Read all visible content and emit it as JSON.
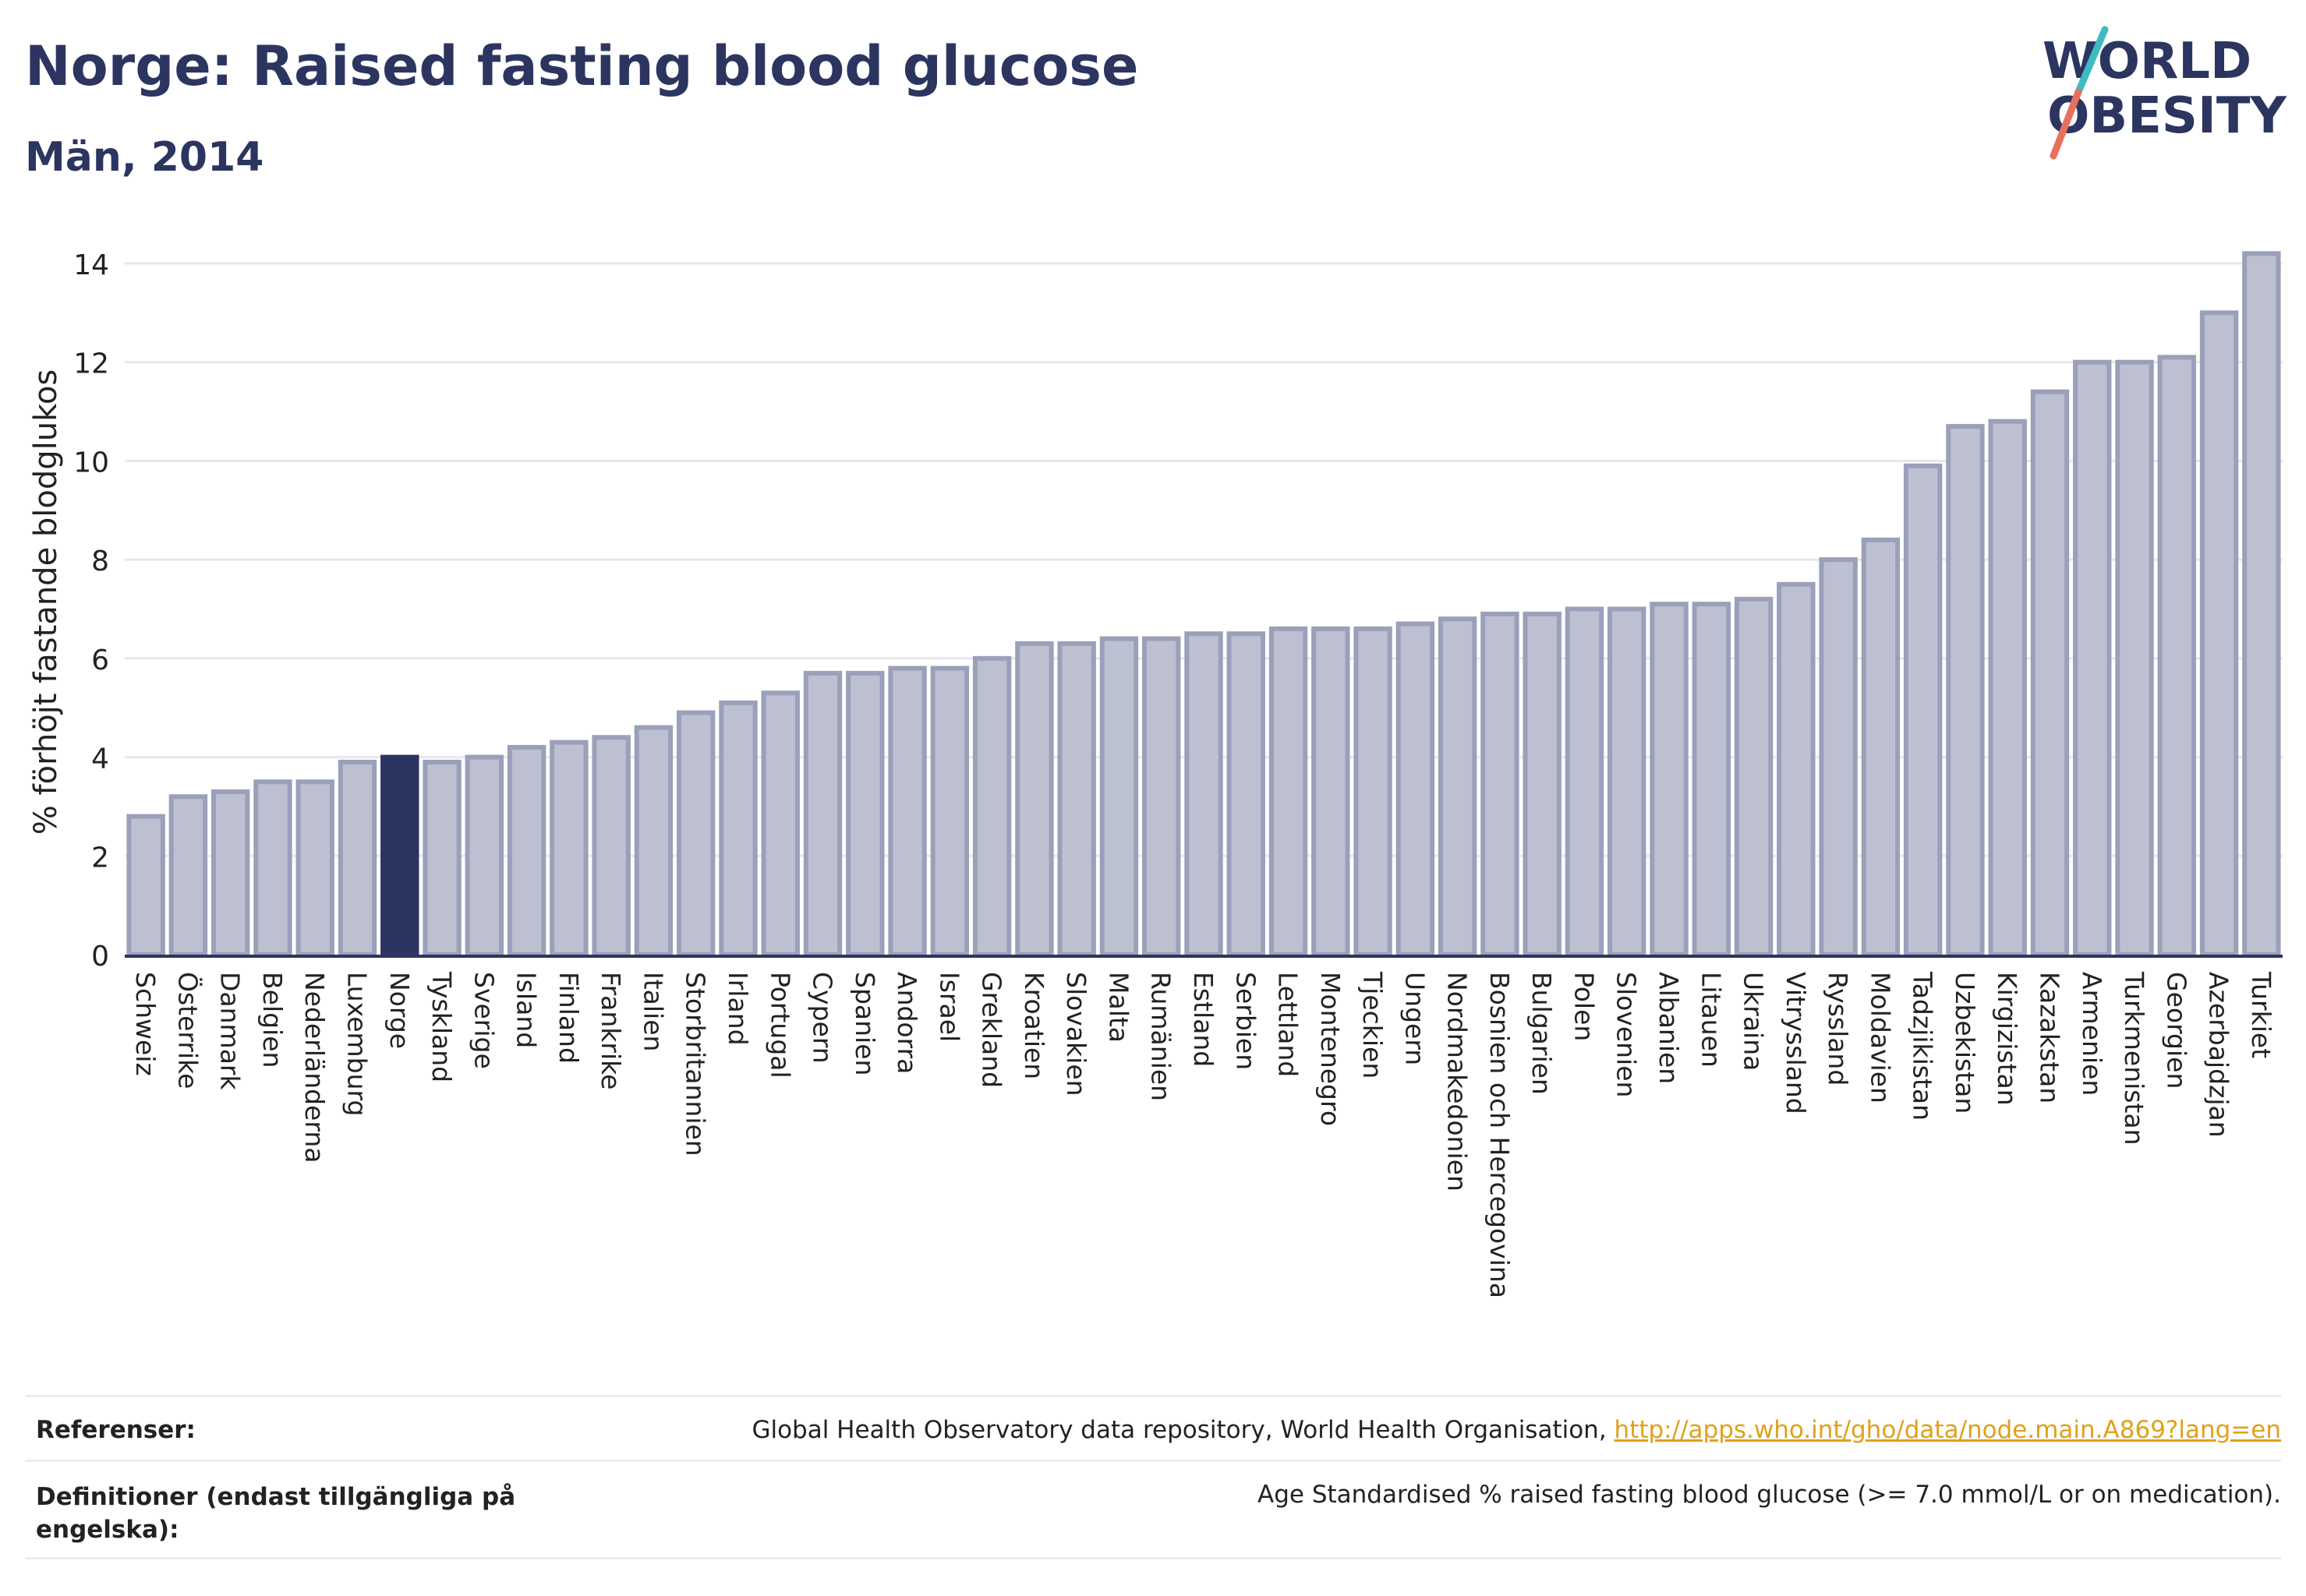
{
  "header": {
    "title": "Norge: Raised fasting blood glucose",
    "subtitle": "Män, 2014",
    "logo_line1": "WORLD",
    "logo_line2": "OBESITY"
  },
  "colors": {
    "highlight": "#2b3560",
    "bar_fill": "#bcc0d0",
    "bar_stroke": "#9aa0ba",
    "grid": "#e6e6ec",
    "logo_slash_top": "#3cbcc0",
    "logo_slash_bottom": "#e8715e"
  },
  "chart_data": {
    "type": "bar",
    "ylabel": "% förhöjt fastande blodglukos",
    "xlabel": "",
    "ylim": [
      0,
      14.6
    ],
    "yticks": [
      0,
      2,
      4,
      6,
      8,
      10,
      12,
      14
    ],
    "highlight": "Norge",
    "grid": true,
    "categories": [
      "Schweiz",
      "Österrike",
      "Danmark",
      "Belgien",
      "Nederländerna",
      "Luxemburg",
      "Norge",
      "Tyskland",
      "Sverige",
      "Island",
      "Finland",
      "Frankrike",
      "Italien",
      "Storbritannien",
      "Irland",
      "Portugal",
      "Cypern",
      "Spanien",
      "Andorra",
      "Israel",
      "Grekland",
      "Kroatien",
      "Slovakien",
      "Malta",
      "Rumänien",
      "Estland",
      "Serbien",
      "Lettland",
      "Montenegro",
      "Tjeckien",
      "Ungern",
      "Nordmakedonien",
      "Bosnien och Hercegovina",
      "Bulgarien",
      "Polen",
      "Slovenien",
      "Albanien",
      "Litauen",
      "Ukraina",
      "Vitryssland",
      "Ryssland",
      "Moldavien",
      "Tadzjikistan",
      "Uzbekistan",
      "Kirgizistan",
      "Kazakstan",
      "Armenien",
      "Turkmenistan",
      "Georgien",
      "Azerbajdzjan",
      "Turkiet"
    ],
    "values": [
      2.8,
      3.2,
      3.3,
      3.5,
      3.5,
      3.9,
      4.0,
      3.9,
      4.0,
      4.2,
      4.3,
      4.4,
      4.6,
      4.9,
      5.1,
      5.3,
      5.7,
      5.7,
      5.8,
      5.8,
      6.0,
      6.3,
      6.3,
      6.4,
      6.4,
      6.5,
      6.5,
      6.6,
      6.6,
      6.6,
      6.7,
      6.8,
      6.9,
      6.9,
      7.0,
      7.0,
      7.1,
      7.1,
      7.2,
      7.5,
      8.0,
      8.4,
      9.9,
      10.7,
      10.8,
      11.4,
      12.0,
      12.0,
      12.1,
      13.0,
      14.2
    ]
  },
  "footer": {
    "references_label": "Referenser:",
    "references_text": "Global Health Observatory data repository, World Health Organisation, ",
    "references_link": "http://apps.who.int/gho/data/node.main.A869?lang=en",
    "definitions_label": "Definitioner (endast tillgängliga på engelska):",
    "definitions_text": "Age Standardised % raised fasting blood glucose (>= 7.0 mmol/L or on medication)."
  }
}
